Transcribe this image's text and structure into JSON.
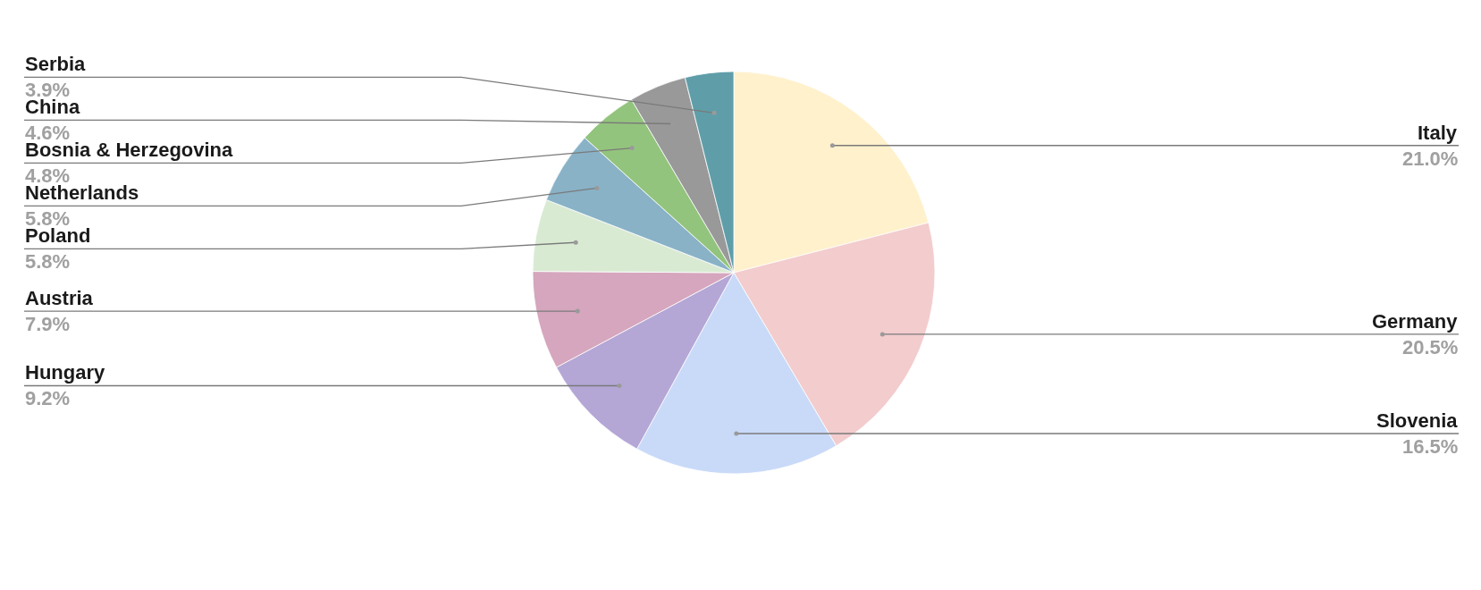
{
  "chart_data": {
    "type": "pie",
    "categories": [
      "Italy",
      "Germany",
      "Slovenia",
      "Hungary",
      "Austria",
      "Poland",
      "Netherlands",
      "Bosnia & Herzegovina",
      "China",
      "Serbia"
    ],
    "values": [
      21.0,
      20.5,
      16.5,
      9.2,
      7.9,
      5.8,
      5.8,
      4.8,
      4.6,
      3.9
    ],
    "value_labels": [
      "21.0%",
      "20.5%",
      "16.5%",
      "9.2%",
      "7.9%",
      "5.8%",
      "5.8%",
      "4.8%",
      "4.6%",
      "3.9%"
    ],
    "colors": [
      "#fff1cc",
      "#f3cccd",
      "#c9daf8",
      "#b4a7d6",
      "#d5a6bd",
      "#d9ead3",
      "#89b2c7",
      "#93c47d",
      "#999999",
      "#5f9ea9"
    ]
  }
}
